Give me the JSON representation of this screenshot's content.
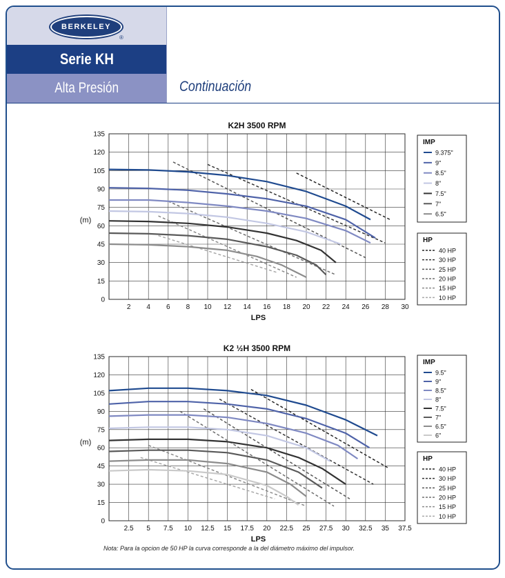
{
  "header": {
    "logo_text": "BERKELEY",
    "logo_reg": "®",
    "series": "Serie KH",
    "subtitle": "Alta Presión",
    "continuation": "Continuación"
  },
  "note": "Nota: Para la opcion de 50 HP la curva corresponde a la del diámetro máximo del impulsor.",
  "chart_data": [
    {
      "type": "line",
      "title": "K2H 3500 RPM",
      "xlabel": "LPS",
      "ylabel": "(m)",
      "xlim": [
        0,
        30
      ],
      "ylim": [
        0,
        135
      ],
      "xticks": [
        2,
        4,
        6,
        8,
        10,
        12,
        14,
        16,
        18,
        20,
        22,
        24,
        26,
        28,
        30
      ],
      "xtick_labels": [
        "2",
        "4",
        "6",
        "8",
        "10",
        "12",
        "14",
        "16",
        "18",
        "20",
        "22",
        "24",
        "26",
        "28",
        "30"
      ],
      "yticks": [
        0,
        15,
        30,
        45,
        60,
        75,
        90,
        105,
        120,
        135
      ],
      "ytick_labels": [
        "0",
        "15",
        "30",
        "45",
        "60",
        "75",
        "90",
        "105",
        "120",
        "135"
      ],
      "grid": true,
      "legend_imp_title": "IMP",
      "legend_hp_title": "HP",
      "series": [
        {
          "name": "9.375\"",
          "color": "#1f4a8f",
          "width": 2.2,
          "points": [
            [
              0,
              106
            ],
            [
              4,
              105.5
            ],
            [
              8,
              104
            ],
            [
              12,
              101
            ],
            [
              16,
              96
            ],
            [
              20,
              88
            ],
            [
              24,
              76
            ],
            [
              26.5,
              65
            ]
          ]
        },
        {
          "name": "9\"",
          "color": "#4e62a8",
          "width": 2.2,
          "points": [
            [
              0,
              91
            ],
            [
              4,
              90.5
            ],
            [
              8,
              89
            ],
            [
              12,
              86
            ],
            [
              16,
              82
            ],
            [
              20,
              76
            ],
            [
              24,
              65
            ],
            [
              27,
              50
            ]
          ]
        },
        {
          "name": "8.5\"",
          "color": "#7f89c2",
          "width": 2.2,
          "points": [
            [
              0,
              81
            ],
            [
              4,
              81
            ],
            [
              8,
              79
            ],
            [
              12,
              76
            ],
            [
              16,
              72
            ],
            [
              20,
              66
            ],
            [
              24,
              56
            ],
            [
              26.5,
              46
            ]
          ]
        },
        {
          "name": "8\"",
          "color": "#c2c7e3",
          "width": 2.2,
          "points": [
            [
              0,
              72
            ],
            [
              4,
              71.5
            ],
            [
              8,
              70
            ],
            [
              12,
              67
            ],
            [
              16,
              62
            ],
            [
              20,
              55
            ],
            [
              23.5,
              45
            ]
          ]
        },
        {
          "name": "7.5\"",
          "color": "#333333",
          "width": 2.2,
          "points": [
            [
              0,
              64
            ],
            [
              4,
              63.5
            ],
            [
              8,
              62
            ],
            [
              12,
              59
            ],
            [
              16,
              54
            ],
            [
              19,
              48
            ],
            [
              21.5,
              40
            ],
            [
              23,
              30
            ]
          ]
        },
        {
          "name": "7\"",
          "color": "#595959",
          "width": 2.2,
          "points": [
            [
              0,
              54
            ],
            [
              4,
              53.5
            ],
            [
              8,
              52
            ],
            [
              12,
              49
            ],
            [
              16,
              43
            ],
            [
              19,
              36
            ],
            [
              21,
              28
            ],
            [
              22,
              20
            ]
          ]
        },
        {
          "name": "6.5\"",
          "color": "#8c8c8c",
          "width": 2.2,
          "points": [
            [
              0,
              45
            ],
            [
              4,
              44.5
            ],
            [
              8,
              43
            ],
            [
              12,
              40
            ],
            [
              15,
              35
            ],
            [
              17.5,
              28
            ],
            [
              19,
              22
            ],
            [
              20,
              18
            ]
          ]
        }
      ],
      "hp_lines": [
        {
          "name": "40 HP",
          "color": "#222222",
          "points": [
            [
              19,
              103
            ],
            [
              28.5,
              65
            ]
          ]
        },
        {
          "name": "30 HP",
          "color": "#333333",
          "points": [
            [
              10,
              110
            ],
            [
              28,
              46
            ]
          ]
        },
        {
          "name": "25 HP",
          "color": "#555555",
          "points": [
            [
              6.5,
              112
            ],
            [
              26,
              34
            ]
          ]
        },
        {
          "name": "20 HP",
          "color": "#6e6e6e",
          "points": [
            [
              6,
              80
            ],
            [
              23,
              20
            ]
          ]
        },
        {
          "name": "15 HP",
          "color": "#8a8a8a",
          "points": [
            [
              5,
              68
            ],
            [
              19,
              18
            ]
          ]
        },
        {
          "name": "10 HP",
          "color": "#a8a8a8",
          "points": [
            [
              5,
              52
            ],
            [
              17,
              22
            ]
          ]
        }
      ]
    },
    {
      "type": "line",
      "title": "K2 ½H 3500 RPM",
      "xlabel": "LPS",
      "ylabel": "(m)",
      "xlim": [
        0,
        37.5
      ],
      "ylim": [
        0,
        135
      ],
      "xticks": [
        2.5,
        5,
        7.5,
        10,
        12.5,
        15,
        17.5,
        20,
        22.5,
        25,
        27.5,
        30,
        32.5,
        35,
        37.5
      ],
      "xtick_labels": [
        "2.5",
        "5",
        "7.5",
        "10",
        "12.5",
        "15",
        "17.5",
        "20",
        "22.5",
        "25",
        "27.5",
        "30",
        "32.5",
        "35",
        "37.5"
      ],
      "yticks": [
        0,
        15,
        30,
        45,
        60,
        75,
        90,
        105,
        120,
        135
      ],
      "ytick_labels": [
        "0",
        "15",
        "30",
        "45",
        "60",
        "75",
        "90",
        "105",
        "120",
        "135"
      ],
      "grid": true,
      "legend_imp_title": "IMP",
      "legend_hp_title": "HP",
      "series": [
        {
          "name": "9.5\"",
          "color": "#1f4a8f",
          "width": 2.2,
          "points": [
            [
              0,
              107
            ],
            [
              5,
              109
            ],
            [
              10,
              109
            ],
            [
              15,
              107
            ],
            [
              20,
              103
            ],
            [
              25,
              95
            ],
            [
              30,
              83
            ],
            [
              34,
              70
            ]
          ]
        },
        {
          "name": "9\"",
          "color": "#4e62a8",
          "width": 2.2,
          "points": [
            [
              0,
              96
            ],
            [
              5,
              98
            ],
            [
              10,
              98
            ],
            [
              15,
              96
            ],
            [
              20,
              92
            ],
            [
              25,
              84
            ],
            [
              30,
              72
            ],
            [
              33,
              60
            ]
          ]
        },
        {
          "name": "8.5\"",
          "color": "#7f89c2",
          "width": 2.2,
          "points": [
            [
              0,
              86
            ],
            [
              5,
              87
            ],
            [
              10,
              87
            ],
            [
              15,
              85
            ],
            [
              20,
              80
            ],
            [
              25,
              72
            ],
            [
              29,
              62
            ],
            [
              31.5,
              51
            ]
          ]
        },
        {
          "name": "8\"",
          "color": "#c2c7e3",
          "width": 2.2,
          "points": [
            [
              0,
              76
            ],
            [
              5,
              77
            ],
            [
              10,
              77
            ],
            [
              15,
              75
            ],
            [
              20,
              70
            ],
            [
              25,
              60
            ],
            [
              28,
              49
            ]
          ]
        },
        {
          "name": "7.5\"",
          "color": "#333333",
          "width": 2.2,
          "points": [
            [
              0,
              66
            ],
            [
              5,
              67
            ],
            [
              10,
              67
            ],
            [
              15,
              65
            ],
            [
              20,
              60
            ],
            [
              24,
              52
            ],
            [
              27,
              43
            ],
            [
              30,
              30
            ]
          ]
        },
        {
          "name": "7\"",
          "color": "#595959",
          "width": 2.2,
          "points": [
            [
              0,
              57
            ],
            [
              5,
              58
            ],
            [
              10,
              58
            ],
            [
              15,
              56
            ],
            [
              20,
              50
            ],
            [
              24,
              40
            ],
            [
              27,
              27
            ]
          ]
        },
        {
          "name": "6.5\"",
          "color": "#8c8c8c",
          "width": 2.2,
          "points": [
            [
              0,
              49
            ],
            [
              5,
              50
            ],
            [
              10,
              50
            ],
            [
              15,
              47
            ],
            [
              20,
              40
            ],
            [
              23,
              30
            ],
            [
              25,
              20
            ]
          ]
        },
        {
          "name": "6\"",
          "color": "#c9c9c9",
          "width": 2.2,
          "points": [
            [
              0,
              41
            ],
            [
              5,
              42
            ],
            [
              10,
              41
            ],
            [
              15,
              38
            ],
            [
              20,
              29
            ],
            [
              22.5,
              20
            ],
            [
              24,
              13
            ]
          ]
        }
      ],
      "hp_lines": [
        {
          "name": "40 HP",
          "color": "#222222",
          "points": [
            [
              18,
              108
            ],
            [
              35.5,
              43
            ]
          ]
        },
        {
          "name": "30 HP",
          "color": "#333333",
          "points": [
            [
              14,
              100
            ],
            [
              33.5,
              30
            ]
          ]
        },
        {
          "name": "25 HP",
          "color": "#555555",
          "points": [
            [
              12,
              92
            ],
            [
              30.5,
              18
            ]
          ]
        },
        {
          "name": "20 HP",
          "color": "#6e6e6e",
          "points": [
            [
              9,
              90
            ],
            [
              28.5,
              12
            ]
          ]
        },
        {
          "name": "15 HP",
          "color": "#8a8a8a",
          "points": [
            [
              5,
              62
            ],
            [
              25,
              12
            ]
          ]
        },
        {
          "name": "10 HP",
          "color": "#a8a8a8",
          "points": [
            [
              4,
              52
            ],
            [
              21,
              18
            ]
          ]
        }
      ]
    }
  ]
}
